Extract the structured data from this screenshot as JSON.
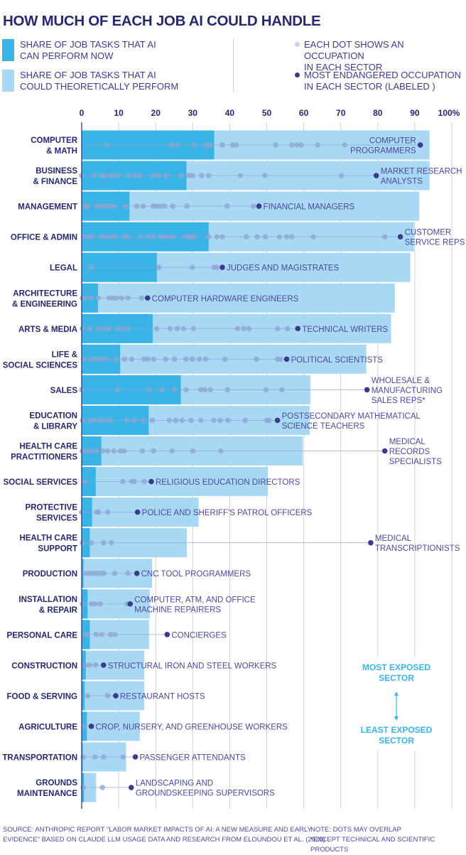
{
  "title": "HOW MUCH OF EACH JOB AI COULD HANDLE",
  "legend": {
    "now": [
      "SHARE OF JOB TASKS THAT AI",
      "CAN PERFORM NOW"
    ],
    "theoretical": [
      "SHARE OF JOB TASKS THAT AI",
      "COULD THEORETICALLY PERFORM"
    ],
    "dot": [
      "EACH DOT SHOWS AN OCCUPATION",
      "IN EACH SECTOR"
    ],
    "endangered": [
      "MOST ENDANGERED OCCUPATION",
      "IN EACH SECTOR (LABELED )"
    ]
  },
  "colors": {
    "now": "#3ab4e6",
    "theoretical": "#a9d8f5",
    "dot": "#8ea5cf",
    "endangered": "#3b3a8d",
    "label": "#4b4a9b",
    "sector": "#27286e",
    "exposed": "#3ab4e6"
  },
  "exposure_note": {
    "top": [
      "MOST EXPOSED",
      "SECTOR"
    ],
    "bottom": [
      "LEAST EXPOSED",
      "SECTOR"
    ]
  },
  "footer": {
    "source": [
      "SOURCE: ANTHROPIC REPORT \"LABOR MARKET IMPACTS OF AI: A NEW MEASURE AND EARLY",
      "EVIDENCE\" BASED ON CLAUDE LLM USAGE DATA AND RESEARCH FROM ELOUNDOU ET AL. (2023)"
    ],
    "note": [
      "NOTE: DOTS MAY OVERLAP",
      "*EXCEPT TECHNICAL AND SCIENTIFIC PRODUCTS"
    ]
  },
  "chart_data": {
    "type": "bar",
    "orientation": "horizontal",
    "title": "HOW MUCH OF EACH JOB AI COULD HANDLE",
    "xlim": [
      0,
      100
    ],
    "x_ticks": [
      "0",
      "10",
      "20",
      "30",
      "40",
      "50",
      "60",
      "70",
      "80",
      "90",
      "100%"
    ],
    "grid": true,
    "sectors": [
      {
        "name": [
          "COMPUTER",
          "& MATH"
        ],
        "now": 35.8,
        "theoretical": 94,
        "dots": [
          6.7,
          24.3,
          25.9,
          30.5,
          33.7,
          34.8,
          38,
          40.8,
          41.8,
          52.4,
          56.8,
          58.1,
          59.3,
          63.8,
          71.1
        ],
        "endangered": {
          "value": 91.5,
          "label": [
            "COMPUTER",
            "PROGRAMMERS"
          ]
        }
      },
      {
        "name": [
          "BUSINESS",
          "& FINANCE"
        ],
        "now": 28.3,
        "theoretical": 94,
        "dots": [
          0,
          3.4,
          5.3,
          6,
          7.7,
          8.4,
          9.9,
          12.7,
          14.4,
          15.5,
          19.2,
          20.7,
          22.7,
          26.9,
          29,
          30,
          32.4,
          34.3,
          42.9,
          49.5,
          70.2
        ],
        "endangered": {
          "value": 79.6,
          "label": [
            "MARKET RESEARCH",
            "ANALYSTS"
          ]
        }
      },
      {
        "name": [
          "MANAGEMENT"
        ],
        "now": 12.9,
        "theoretical": 91.2,
        "dots": [
          0.9,
          1.6,
          4,
          5,
          6,
          7,
          8,
          8.7,
          11.8,
          14.9,
          16.6,
          19.3,
          20.3,
          21.3,
          22.4,
          24.6,
          28.4,
          39.3,
          46.4
        ],
        "endangered": {
          "value": 47.9,
          "label": [
            "FINANCIAL MANAGERS"
          ]
        }
      },
      {
        "name": [
          "OFFICE & ADMIN"
        ],
        "now": 34.3,
        "theoretical": 89.8,
        "dots": [
          0.5,
          1.9,
          3,
          5.3,
          6.3,
          7.7,
          9.1,
          11.5,
          12.5,
          15.9,
          17.9,
          19.3,
          21.3,
          22.4,
          23.7,
          24.7,
          27.8,
          28.8,
          29.9,
          30.5,
          34.3,
          36.5,
          38,
          44.5,
          47.4,
          49.6,
          53.4,
          55.4,
          56.8,
          62.6,
          81.9
        ],
        "endangered": {
          "value": 86.1,
          "label": [
            "CUSTOMER",
            "SERVICE REPS"
          ]
        }
      },
      {
        "name": [
          "LEGAL"
        ],
        "now": 20.3,
        "theoretical": 88.8,
        "dots": [
          2.6,
          20.9,
          29.9,
          35.7,
          36.5
        ],
        "endangered": {
          "value": 38,
          "label": [
            "JUDGES AND MAGISTRATES"
          ]
        }
      },
      {
        "name": [
          "ARCHITECTURE",
          "& ENGINEERING"
        ],
        "now": 4.4,
        "theoretical": 84.6,
        "dots": [
          0.2,
          1.2,
          2.6,
          4.5,
          7.4,
          8.4,
          9.4,
          10.8,
          12.5,
          16.2
        ],
        "endangered": {
          "value": 17.8,
          "label": [
            "COMPUTER HARDWARE ENGINEERS"
          ]
        }
      },
      {
        "name": [
          "ARTS & MEDIA"
        ],
        "now": 19.2,
        "theoretical": 83.6,
        "dots": [
          0.2,
          2.2,
          4.6,
          6,
          7.4,
          9.7,
          11.1,
          12.5,
          20.3,
          23.9,
          25.8,
          27.5,
          30.2,
          42.1,
          43.8,
          45.2,
          52.9,
          55.6
        ],
        "endangered": {
          "value": 58.4,
          "label": [
            "TECHNICAL WRITERS"
          ]
        }
      },
      {
        "name": [
          "LIFE &",
          "SOCIAL SCIENCES"
        ],
        "now": 10.4,
        "theoretical": 76.9,
        "dots": [
          0.5,
          2.6,
          4,
          5.3,
          6.7,
          9.3,
          11.6,
          13.5,
          16.8,
          17.9,
          19.5,
          22.7,
          25.1,
          28.2,
          29.9,
          31.8,
          33.5,
          38.7,
          47.2,
          52.9,
          53.7
        ],
        "endangered": {
          "value": 55.4,
          "label": [
            "POLITICAL SCIENTISTS"
          ]
        }
      },
      {
        "name": [
          "SALES"
        ],
        "now": 26.8,
        "theoretical": 61.8,
        "dots": [
          0,
          9.7,
          18.3,
          21.7,
          25.1,
          28.2,
          32.2,
          33.3,
          34.8,
          39.4,
          49.8,
          54.1
        ],
        "endangered": {
          "value": 77.1,
          "label": [
            "WHOLESALE &",
            "MANUFACTURING",
            "SALES REPS*"
          ]
        }
      },
      {
        "name": [
          "EDUCATION",
          "& LIBRARY"
        ],
        "now": 18.1,
        "theoretical": 61.6,
        "dots": [
          0.2,
          2.2,
          3.3,
          5,
          6.3,
          7.7,
          12.1,
          14.2,
          16.6,
          19.1,
          23.7,
          25.4,
          27.1,
          29.5,
          32.2,
          35.7,
          37.4,
          39.5,
          44.2,
          50,
          50.6
        ],
        "endangered": {
          "value": 52.9,
          "label": [
            "POSTSECONDARY MATHEMATICAL",
            "SCIENCE TEACHERS"
          ]
        }
      },
      {
        "name": [
          "HEALTH CARE",
          "PRACTITIONERS"
        ],
        "now": 5.3,
        "theoretical": 59.7,
        "dots": [
          0.2,
          1.2,
          2.6,
          4,
          5.7,
          7,
          8.7,
          10.4,
          11.5,
          16.4,
          19.4,
          24.4,
          30,
          37.6
        ],
        "endangered": {
          "value": 81.9,
          "label": [
            "MEDICAL",
            "RECORDS",
            "SPECIALISTS"
          ]
        }
      },
      {
        "name": [
          "SOCIAL SERVICES"
        ],
        "now": 3.8,
        "theoretical": 50.3,
        "dots": [
          0.9,
          11.1,
          13.5,
          14.2,
          16.9
        ],
        "endangered": {
          "value": 18.8,
          "label": [
            "RELIGIOUS EDUCATION DIRECTORS"
          ]
        }
      },
      {
        "name": [
          "PROTECTIVE",
          "SERVICES"
        ],
        "now": 2.8,
        "theoretical": 31.6,
        "dots": [
          0,
          4,
          4.6,
          7
        ],
        "endangered": {
          "value": 15.1,
          "label": [
            "POLICE AND SHERIFF'S PATROL OFFICERS"
          ]
        }
      },
      {
        "name": [
          "HEALTH CARE",
          "SUPPORT"
        ],
        "now": 2.2,
        "theoretical": 28.4,
        "dots": [
          0.2,
          2.6,
          5.9,
          8
        ],
        "endangered": {
          "value": 78.1,
          "label": [
            "MEDICAL",
            "TRANSCRIPTIONISTS"
          ]
        }
      },
      {
        "name": [
          "PRODUCTION"
        ],
        "now": 0.5,
        "theoretical": 19,
        "dots": [
          1.2,
          2.2,
          3.3,
          4.3,
          5.3,
          6,
          8.9,
          12.5
        ],
        "endangered": {
          "value": 14.9,
          "label": [
            "CNC TOOL PROGRAMMERS"
          ]
        }
      },
      {
        "name": [
          "INSTALLATION",
          "& REPAIR"
        ],
        "now": 1.6,
        "theoretical": 18.4,
        "dots": [
          0.2,
          2.6,
          3.6,
          5,
          12.3
        ],
        "endangered": {
          "value": 13.1,
          "label": [
            "COMPUTER, ATM, AND OFFICE",
            "MACHINE REPAIRERS"
          ]
        }
      },
      {
        "name": [
          "PERSONAL CARE"
        ],
        "now": 2.2,
        "theoretical": 18.2,
        "dots": [
          1,
          1.5,
          3.9,
          5.4,
          7.8,
          9
        ],
        "endangered": {
          "value": 23.1,
          "label": [
            "CONCIERGES"
          ]
        }
      },
      {
        "name": [
          "CONSTRUCTION"
        ],
        "now": 1.1,
        "theoretical": 16.9,
        "dots": [
          1,
          2.2,
          3.8
        ],
        "endangered": {
          "value": 5.9,
          "label": [
            "STRUCTURAL IRON AND STEEL WORKERS"
          ]
        }
      },
      {
        "name": [
          "FOOD & SERVING"
        ],
        "now": 0.8,
        "theoretical": 16.9,
        "dots": [
          1.6,
          7
        ],
        "endangered": {
          "value": 9.2,
          "label": [
            "RESTAURANT HOSTS"
          ]
        }
      },
      {
        "name": [
          "AGRICULTURE"
        ],
        "now": 1.4,
        "theoretical": 15.7,
        "dots": [
          0.6
        ],
        "endangered": {
          "value": 2.6,
          "label": [
            "CROP, NURSERY, AND GREENHOUSE WORKERS"
          ]
        }
      },
      {
        "name": [
          "TRANSPORTATION"
        ],
        "now": 0.2,
        "theoretical": 12,
        "dots": [
          0.4,
          3.6,
          5.9,
          11.2
        ],
        "endangered": {
          "value": 14.5,
          "label": [
            "PASSENGER ATTENDANTS"
          ]
        }
      },
      {
        "name": [
          "GROUNDS",
          "MAINTENANCE"
        ],
        "now": 0.6,
        "theoretical": 3.9,
        "dots": [
          0.4,
          5.6
        ],
        "endangered": {
          "value": 13.4,
          "label": [
            "LANDSCAPING AND",
            "GROUNDSKEEPING SUPERVISORS"
          ]
        }
      }
    ]
  }
}
